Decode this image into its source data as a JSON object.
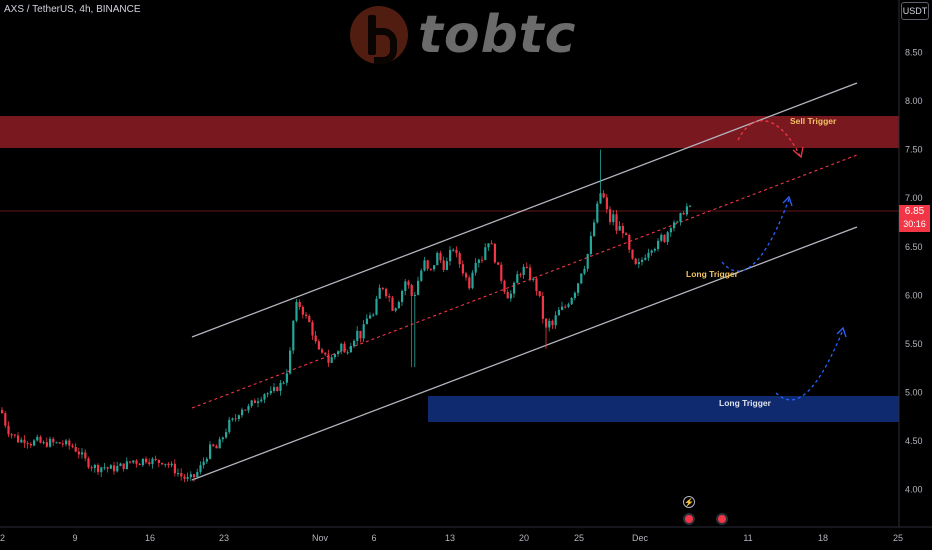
{
  "header": {
    "symbol_title": "AXS / TetherUS, 4h, BINANCE",
    "currency": "USDT"
  },
  "logo": {
    "text": "tobtc"
  },
  "price_tag": {
    "price": "6.85",
    "countdown": "30:16",
    "color": "#f23645"
  },
  "colors": {
    "background": "#000000",
    "up_candle": "#26a69a",
    "down_candle": "#f23645",
    "channel_line": "#b2b5be",
    "midline": "#f23645",
    "sell_zone": "#8c1a22",
    "long_zone": "#0f2a6e",
    "annotation_text": "#f2c464"
  },
  "icons": [
    "flash-icon",
    "event-flag-icon",
    "event-flag-icon"
  ],
  "chart_data": {
    "type": "candlestick",
    "title": "AXS / TetherUS, 4h, BINANCE",
    "y_axis": {
      "ticks": [
        "8.50",
        "8.00",
        "7.50",
        "7.00",
        "6.50",
        "6.00",
        "5.50",
        "5.00",
        "4.50",
        "4.00"
      ],
      "range": [
        3.38,
        9.0
      ],
      "unit": "USDT"
    },
    "x_axis": {
      "ticks": [
        "2",
        "9",
        "16",
        "23",
        "Nov",
        "6",
        "13",
        "20",
        "25",
        "Dec",
        "11",
        "18",
        "25"
      ]
    },
    "last_price": 6.85,
    "annotations": {
      "sell_zone": {
        "label": "Sell Trigger",
        "from": 7.48,
        "to": 7.82
      },
      "long_zone": {
        "label": "Long Trigger",
        "from": 4.67,
        "to": 4.94
      },
      "channel_long_label": "Long Trigger"
    },
    "series": [
      {
        "price_path": [
          [
            0,
            4.82
          ],
          [
            6,
            4.62
          ],
          [
            12,
            4.56
          ],
          [
            18,
            4.5
          ],
          [
            24,
            4.52
          ],
          [
            30,
            4.48
          ],
          [
            36,
            4.5
          ],
          [
            42,
            4.46
          ],
          [
            48,
            4.49
          ],
          [
            54,
            4.47
          ],
          [
            60,
            4.48
          ],
          [
            66,
            4.46
          ],
          [
            72,
            4.44
          ],
          [
            78,
            4.38
          ],
          [
            84,
            4.3
          ],
          [
            90,
            4.25
          ],
          [
            96,
            4.22
          ],
          [
            102,
            4.24
          ],
          [
            108,
            4.21
          ],
          [
            114,
            4.22
          ],
          [
            120,
            4.24
          ],
          [
            126,
            4.26
          ],
          [
            132,
            4.3
          ],
          [
            138,
            4.28
          ],
          [
            144,
            4.32
          ],
          [
            150,
            4.3
          ],
          [
            156,
            4.28
          ],
          [
            162,
            4.3
          ],
          [
            168,
            4.25
          ],
          [
            174,
            4.2
          ],
          [
            180,
            4.14
          ],
          [
            186,
            4.1
          ],
          [
            192,
            4.12
          ],
          [
            198,
            4.2
          ],
          [
            204,
            4.32
          ],
          [
            210,
            4.44
          ],
          [
            216,
            4.42
          ],
          [
            222,
            4.55
          ],
          [
            228,
            4.68
          ],
          [
            234,
            4.72
          ],
          [
            240,
            4.85
          ],
          [
            246,
            4.82
          ],
          [
            252,
            4.9
          ],
          [
            258,
            4.95
          ],
          [
            264,
            5.0
          ],
          [
            270,
            4.98
          ],
          [
            276,
            5.05
          ],
          [
            282,
            5.1
          ],
          [
            288,
            5.3
          ],
          [
            292,
            5.72
          ],
          [
            296,
            5.92
          ],
          [
            300,
            5.88
          ],
          [
            304,
            5.78
          ],
          [
            308,
            5.72
          ],
          [
            312,
            5.6
          ],
          [
            316,
            5.45
          ],
          [
            320,
            5.36
          ],
          [
            324,
            5.42
          ],
          [
            328,
            5.3
          ],
          [
            332,
            5.38
          ],
          [
            336,
            5.42
          ],
          [
            340,
            5.5
          ],
          [
            344,
            5.38
          ],
          [
            348,
            5.5
          ],
          [
            352,
            5.55
          ],
          [
            356,
            5.62
          ],
          [
            360,
            5.58
          ],
          [
            364,
            5.7
          ],
          [
            368,
            5.82
          ],
          [
            372,
            5.78
          ],
          [
            376,
            5.95
          ],
          [
            380,
            6.12
          ],
          [
            384,
            6.05
          ],
          [
            388,
            5.98
          ],
          [
            392,
            5.86
          ],
          [
            396,
            5.92
          ],
          [
            400,
            6.02
          ],
          [
            404,
            6.15
          ],
          [
            408,
            6.08
          ],
          [
            412,
            5.95
          ],
          [
            416,
            6.12
          ],
          [
            420,
            6.25
          ],
          [
            424,
            6.35
          ],
          [
            428,
            6.2
          ],
          [
            432,
            6.3
          ],
          [
            436,
            6.42
          ],
          [
            440,
            6.35
          ],
          [
            444,
            6.28
          ],
          [
            448,
            6.4
          ],
          [
            452,
            6.5
          ],
          [
            456,
            6.38
          ],
          [
            460,
            6.3
          ],
          [
            464,
            6.2
          ],
          [
            468,
            6.1
          ],
          [
            472,
            6.3
          ],
          [
            476,
            6.42
          ],
          [
            480,
            6.35
          ],
          [
            484,
            6.5
          ],
          [
            488,
            6.58
          ],
          [
            492,
            6.45
          ],
          [
            496,
            6.3
          ],
          [
            500,
            6.18
          ],
          [
            504,
            6.05
          ],
          [
            508,
            5.98
          ],
          [
            512,
            6.05
          ],
          [
            516,
            6.2
          ],
          [
            520,
            6.25
          ],
          [
            524,
            6.28
          ],
          [
            528,
            6.2
          ],
          [
            532,
            6.15
          ],
          [
            536,
            6.05
          ],
          [
            540,
            5.9
          ],
          [
            544,
            5.62
          ],
          [
            548,
            5.72
          ],
          [
            552,
            5.68
          ],
          [
            556,
            5.82
          ],
          [
            560,
            5.85
          ],
          [
            564,
            5.88
          ],
          [
            568,
            5.95
          ],
          [
            572,
            6.02
          ],
          [
            576,
            6.1
          ],
          [
            580,
            6.25
          ],
          [
            584,
            6.32
          ],
          [
            588,
            6.48
          ],
          [
            592,
            6.7
          ],
          [
            596,
            6.9
          ],
          [
            600,
            7.08
          ],
          [
            604,
            6.95
          ],
          [
            608,
            6.75
          ],
          [
            612,
            6.82
          ],
          [
            616,
            6.65
          ],
          [
            620,
            6.72
          ],
          [
            624,
            6.62
          ],
          [
            628,
            6.45
          ],
          [
            632,
            6.32
          ],
          [
            636,
            6.28
          ],
          [
            640,
            6.35
          ],
          [
            644,
            6.42
          ],
          [
            648,
            6.48
          ],
          [
            652,
            6.52
          ],
          [
            656,
            6.5
          ],
          [
            660,
            6.6
          ],
          [
            664,
            6.58
          ],
          [
            668,
            6.7
          ],
          [
            672,
            6.78
          ],
          [
            676,
            6.72
          ],
          [
            680,
            6.82
          ],
          [
            684,
            6.9
          ],
          [
            688,
            6.92
          ],
          [
            690,
            6.85
          ]
        ]
      }
    ]
  }
}
